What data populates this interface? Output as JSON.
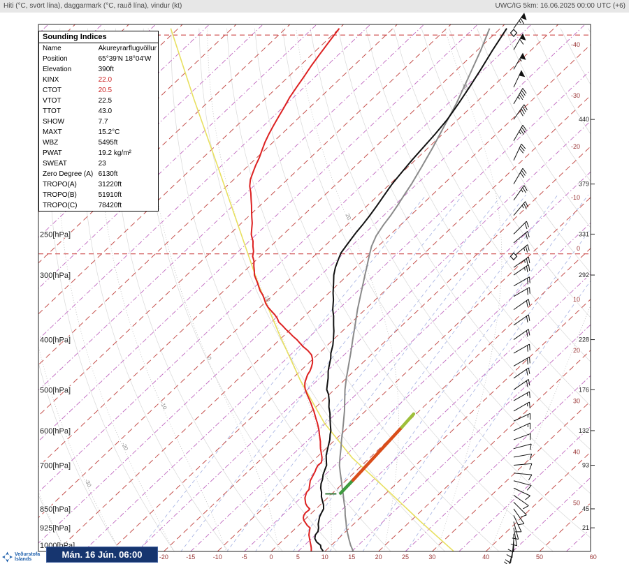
{
  "header": {
    "left": "Hiti (°C, svört lína), daggarmark (°C, rauð lína), vindur (kt)",
    "right": "UWC/IG 5km: 16.06.2025 00:00 UTC (+6)"
  },
  "indices_panel": {
    "title": "Sounding Indices",
    "rows": [
      {
        "label": "Name",
        "value": "Akureyrarflugvöllur",
        "value_color": "#000000"
      },
      {
        "label": "Position",
        "value": "65°39'N 18°04'W",
        "value_color": "#000000"
      },
      {
        "label": "Elevation",
        "value": "390ft",
        "value_color": "#000000"
      },
      {
        "label": "KINX",
        "value": "22.0",
        "value_color": "#cc2222"
      },
      {
        "label": "CTOT",
        "value": "20.5",
        "value_color": "#cc2222"
      },
      {
        "label": "VTOT",
        "value": "22.5",
        "value_color": "#000000"
      },
      {
        "label": "TTOT",
        "value": "43.0",
        "value_color": "#000000"
      },
      {
        "label": "SHOW",
        "value": "7.7",
        "value_color": "#000000"
      },
      {
        "label": "MAXT",
        "value": "15.2°C",
        "value_color": "#000000"
      },
      {
        "label": "WBZ",
        "value": "5495ft",
        "value_color": "#000000"
      },
      {
        "label": "PWAT",
        "value": "19.2 kg/m²",
        "value_color": "#000000"
      },
      {
        "label": "SWEAT",
        "value": "23",
        "value_color": "#000000"
      },
      {
        "label": "Zero Degree (A)",
        "value": "6130ft",
        "value_color": "#000000"
      },
      {
        "label": "TROPO(A)",
        "value": "31220ft",
        "value_color": "#000000"
      },
      {
        "label": "TROPO(B)",
        "value": "51910ft",
        "value_color": "#000000"
      },
      {
        "label": "TROPO(C)",
        "value": "78420ft",
        "value_color": "#000000"
      }
    ]
  },
  "footer": {
    "logo_text_top": "Veðurstofa",
    "logo_text_bottom": "Íslands",
    "datetime": "Mán. 16 Jún. 06:00"
  },
  "chart_data": {
    "type": "skewt_logp_sounding",
    "station": "Akureyrarflugvöllur",
    "pressure_labels": [
      {
        "p": 250,
        "text": "250[hPa]"
      },
      {
        "p": 300,
        "text": "300[hPa]"
      },
      {
        "p": 400,
        "text": "400[hPa]"
      },
      {
        "p": 500,
        "text": "500[hPa]"
      },
      {
        "p": 600,
        "text": "600[hPa]"
      },
      {
        "p": 700,
        "text": "700[hPa]"
      },
      {
        "p": 850,
        "text": "850[hPa]"
      },
      {
        "p": 925,
        "text": "925[hPa]"
      },
      {
        "p": 1000,
        "text": "1000[hPa]"
      }
    ],
    "bottom_temp_labels": [
      -20,
      -15,
      -10,
      -5,
      0,
      5,
      10,
      15,
      20,
      25,
      30,
      40,
      50,
      60
    ],
    "right_temp_labels": [
      -40,
      -30,
      -20,
      -10,
      0,
      10,
      20,
      30,
      40,
      50
    ],
    "right_height_labels": [
      {
        "p": 150,
        "text": "440"
      },
      {
        "p": 200,
        "text": "379"
      },
      {
        "p": 250,
        "text": "331"
      },
      {
        "p": 300,
        "text": "292"
      },
      {
        "p": 400,
        "text": "228"
      },
      {
        "p": 500,
        "text": "176"
      },
      {
        "p": 600,
        "text": "132"
      },
      {
        "p": 700,
        "text": "93"
      },
      {
        "p": 850,
        "text": "45"
      },
      {
        "p": 925,
        "text": "21"
      }
    ],
    "isotherm_step_minor": 5,
    "isotherm_step_major": 10,
    "mixing_ratio_lines_gkg": [
      0.5,
      1,
      2,
      3,
      5,
      8,
      12,
      20
    ],
    "dry_adiabats_c": {
      "min": -40,
      "max": 170,
      "step": 10
    },
    "moist_adiabats_c": {
      "min": -60,
      "max": 40,
      "step": 10
    },
    "moist_adiabat_labels": [
      -30,
      -20,
      -10,
      0,
      10,
      20,
      30
    ],
    "tropopause_lines_p": [
      273,
      103
    ],
    "tropopause_markers_p": [
      276,
      102
    ],
    "temperature_curve": [
      [
        1026,
        9.6
      ],
      [
        1012,
        8.6
      ],
      [
        1000,
        8.0
      ],
      [
        985,
        6.6
      ],
      [
        970,
        5.6
      ],
      [
        955,
        5.0
      ],
      [
        940,
        4.8
      ],
      [
        925,
        4.2
      ],
      [
        910,
        3.4
      ],
      [
        895,
        2.8
      ],
      [
        880,
        2.2
      ],
      [
        865,
        1.8
      ],
      [
        850,
        1.4
      ],
      [
        835,
        0.6
      ],
      [
        820,
        -0.4
      ],
      [
        805,
        -1.4
      ],
      [
        790,
        -2.2
      ],
      [
        775,
        -3.2
      ],
      [
        760,
        -4.0
      ],
      [
        745,
        -4.6
      ],
      [
        730,
        -5.4
      ],
      [
        715,
        -6.0
      ],
      [
        700,
        -6.6
      ],
      [
        685,
        -7.6
      ],
      [
        670,
        -8.6
      ],
      [
        655,
        -9.4
      ],
      [
        640,
        -10.2
      ],
      [
        625,
        -11.0
      ],
      [
        610,
        -12.0
      ],
      [
        600,
        -12.6
      ],
      [
        585,
        -13.8
      ],
      [
        570,
        -15.0
      ],
      [
        555,
        -16.2
      ],
      [
        540,
        -17.6
      ],
      [
        525,
        -18.8
      ],
      [
        510,
        -20.2
      ],
      [
        500,
        -21.4
      ],
      [
        490,
        -22.2
      ],
      [
        475,
        -23.4
      ],
      [
        460,
        -24.8
      ],
      [
        450,
        -25.6
      ],
      [
        435,
        -26.8
      ],
      [
        425,
        -27.8
      ],
      [
        410,
        -29.0
      ],
      [
        400,
        -30.0
      ],
      [
        385,
        -31.6
      ],
      [
        375,
        -32.8
      ],
      [
        360,
        -34.6
      ],
      [
        350,
        -36.0
      ],
      [
        335,
        -37.8
      ],
      [
        325,
        -39.2
      ],
      [
        310,
        -41.2
      ],
      [
        300,
        -42.6
      ],
      [
        290,
        -43.8
      ],
      [
        280,
        -44.8
      ],
      [
        272,
        -45.6
      ],
      [
        264,
        -46.0
      ],
      [
        256,
        -46.4
      ],
      [
        248,
        -46.8
      ],
      [
        240,
        -47.1
      ],
      [
        230,
        -47.6
      ],
      [
        220,
        -48.2
      ],
      [
        210,
        -48.9
      ],
      [
        200,
        -49.6
      ],
      [
        190,
        -50.1
      ],
      [
        180,
        -50.6
      ],
      [
        170,
        -51.0
      ],
      [
        160,
        -51.4
      ],
      [
        150,
        -52.0
      ],
      [
        140,
        -53.0
      ],
      [
        130,
        -54.2
      ],
      [
        120,
        -55.6
      ],
      [
        110,
        -57.2
      ],
      [
        100,
        -58.8
      ]
    ],
    "dewpoint_curve": [
      [
        1026,
        7.4
      ],
      [
        1012,
        6.8
      ],
      [
        1000,
        6.2
      ],
      [
        985,
        5.4
      ],
      [
        970,
        4.6
      ],
      [
        955,
        3.8
      ],
      [
        940,
        3.2
      ],
      [
        925,
        2.6
      ],
      [
        915,
        1.6
      ],
      [
        905,
        0.8
      ],
      [
        895,
        0.0
      ],
      [
        885,
        -0.6
      ],
      [
        875,
        -1.0
      ],
      [
        865,
        -1.2
      ],
      [
        855,
        -1.1
      ],
      [
        850,
        -1.2
      ],
      [
        840,
        -2.2
      ],
      [
        830,
        -3.0
      ],
      [
        820,
        -3.6
      ],
      [
        810,
        -4.2
      ],
      [
        800,
        -4.6
      ],
      [
        790,
        -5.0
      ],
      [
        780,
        -5.1
      ],
      [
        770,
        -5.6
      ],
      [
        760,
        -6.1
      ],
      [
        750,
        -6.6
      ],
      [
        740,
        -6.9
      ],
      [
        730,
        -7.2
      ],
      [
        720,
        -7.5
      ],
      [
        710,
        -7.9
      ],
      [
        700,
        -8.2
      ],
      [
        692,
        -8.1
      ],
      [
        684,
        -8.5
      ],
      [
        676,
        -9.0
      ],
      [
        668,
        -9.6
      ],
      [
        660,
        -10.2
      ],
      [
        650,
        -11.0
      ],
      [
        640,
        -11.7
      ],
      [
        630,
        -12.4
      ],
      [
        620,
        -13.2
      ],
      [
        610,
        -14.0
      ],
      [
        600,
        -14.8
      ],
      [
        590,
        -15.7
      ],
      [
        580,
        -16.6
      ],
      [
        570,
        -17.6
      ],
      [
        560,
        -18.6
      ],
      [
        550,
        -19.6
      ],
      [
        540,
        -20.7
      ],
      [
        530,
        -21.8
      ],
      [
        520,
        -23.0
      ],
      [
        510,
        -24.2
      ],
      [
        500,
        -25.4
      ],
      [
        492,
        -26.2
      ],
      [
        484,
        -26.9
      ],
      [
        476,
        -27.4
      ],
      [
        468,
        -27.9
      ],
      [
        460,
        -28.2
      ],
      [
        452,
        -28.7
      ],
      [
        444,
        -29.3
      ],
      [
        436,
        -30.1
      ],
      [
        428,
        -31.1
      ],
      [
        420,
        -32.6
      ],
      [
        412,
        -34.4
      ],
      [
        404,
        -36.0
      ],
      [
        400,
        -36.8
      ],
      [
        394,
        -38.2
      ],
      [
        388,
        -39.5
      ],
      [
        382,
        -40.9
      ],
      [
        376,
        -42.2
      ],
      [
        370,
        -43.6
      ],
      [
        364,
        -44.6
      ],
      [
        358,
        -45.8
      ],
      [
        352,
        -47.2
      ],
      [
        346,
        -48.6
      ],
      [
        340,
        -49.8
      ],
      [
        334,
        -50.8
      ],
      [
        328,
        -51.9
      ],
      [
        322,
        -53.2
      ],
      [
        316,
        -54.3
      ],
      [
        310,
        -55.4
      ],
      [
        304,
        -56.6
      ],
      [
        300,
        -57.4
      ],
      [
        294,
        -58.3
      ],
      [
        288,
        -59.3
      ],
      [
        282,
        -60.2
      ],
      [
        276,
        -61.4
      ],
      [
        270,
        -62.2
      ],
      [
        264,
        -63.3
      ],
      [
        258,
        -64.3
      ],
      [
        252,
        -65.6
      ],
      [
        250,
        -66.0
      ],
      [
        244,
        -67.0
      ],
      [
        238,
        -68.0
      ],
      [
        232,
        -69.2
      ],
      [
        226,
        -70.4
      ],
      [
        220,
        -71.6
      ],
      [
        214,
        -72.9
      ],
      [
        208,
        -74.2
      ],
      [
        202,
        -75.7
      ],
      [
        196,
        -76.9
      ],
      [
        190,
        -77.8
      ],
      [
        184,
        -78.7
      ],
      [
        178,
        -79.5
      ],
      [
        172,
        -80.5
      ],
      [
        166,
        -81.5
      ],
      [
        160,
        -82.4
      ],
      [
        154,
        -83.2
      ],
      [
        148,
        -84.0
      ],
      [
        142,
        -84.8
      ],
      [
        136,
        -85.7
      ],
      [
        130,
        -86.4
      ],
      [
        124,
        -87.1
      ],
      [
        118,
        -87.9
      ],
      [
        112,
        -88.6
      ],
      [
        106,
        -89.3
      ],
      [
        100,
        -90.0
      ]
    ],
    "gray_reference_curve": [
      [
        1026,
        15.2
      ],
      [
        1000,
        13.6
      ],
      [
        975,
        12.2
      ],
      [
        950,
        10.8
      ],
      [
        925,
        9.4
      ],
      [
        900,
        8.1
      ],
      [
        875,
        6.7
      ],
      [
        850,
        5.4
      ],
      [
        825,
        3.9
      ],
      [
        800,
        2.4
      ],
      [
        775,
        0.8
      ],
      [
        750,
        -0.8
      ],
      [
        725,
        -2.5
      ],
      [
        700,
        -4.2
      ],
      [
        675,
        -5.7
      ],
      [
        650,
        -7.2
      ],
      [
        625,
        -8.8
      ],
      [
        600,
        -10.4
      ],
      [
        575,
        -12.1
      ],
      [
        550,
        -13.9
      ],
      [
        525,
        -15.9
      ],
      [
        500,
        -18.0
      ],
      [
        475,
        -20.0
      ],
      [
        450,
        -22.0
      ],
      [
        425,
        -24.1
      ],
      [
        400,
        -26.4
      ],
      [
        375,
        -28.8
      ],
      [
        350,
        -31.4
      ],
      [
        325,
        -34.0
      ],
      [
        300,
        -36.8
      ],
      [
        288,
        -38.2
      ],
      [
        276,
        -39.7
      ],
      [
        264,
        -41.2
      ],
      [
        252,
        -42.4
      ],
      [
        240,
        -43.2
      ],
      [
        230,
        -43.7
      ],
      [
        220,
        -44.4
      ],
      [
        210,
        -45.2
      ],
      [
        200,
        -46.0
      ],
      [
        185,
        -47.5
      ],
      [
        170,
        -49.2
      ],
      [
        155,
        -51.2
      ],
      [
        140,
        -53.4
      ],
      [
        125,
        -56.2
      ],
      [
        110,
        -59.4
      ],
      [
        100,
        -62.0
      ]
    ],
    "yellow_reference_curve": [
      [
        1026,
        33.9
      ],
      [
        898,
        21.8
      ],
      [
        775,
        8.8
      ],
      [
        677,
        -3.3
      ],
      [
        580,
        -15.3
      ],
      [
        480,
        -28.1
      ],
      [
        392,
        -40.9
      ],
      [
        316,
        -54.2
      ],
      [
        247,
        -68.6
      ],
      [
        187,
        -84.9
      ],
      [
        137,
        -103.2
      ],
      [
        100,
        -121.4
      ]
    ],
    "parcel_segments": [
      {
        "color": "#3f9b3f",
        "pts": [
          [
            793,
            1.5
          ],
          [
            748,
            1.25
          ]
        ]
      },
      {
        "color": "#d94d1a",
        "pts": [
          [
            748,
            1.25
          ],
          [
            591,
            -0.05
          ]
        ]
      },
      {
        "color": "#9ebf3a",
        "pts": [
          [
            591,
            -0.05
          ],
          [
            557,
            -0.44
          ]
        ]
      }
    ],
    "level_tick": {
      "p": 795,
      "t": -0.2
    },
    "wind_barbs": [
      [
        100,
        35,
        65
      ],
      [
        110,
        30,
        60
      ],
      [
        120,
        30,
        55
      ],
      [
        130,
        25,
        50
      ],
      [
        140,
        30,
        45
      ],
      [
        150,
        35,
        40
      ],
      [
        165,
        30,
        35
      ],
      [
        180,
        25,
        30
      ],
      [
        200,
        30,
        30
      ],
      [
        215,
        35,
        25
      ],
      [
        230,
        40,
        25
      ],
      [
        250,
        45,
        20
      ],
      [
        260,
        50,
        20
      ],
      [
        276,
        50,
        25
      ],
      [
        290,
        55,
        25
      ],
      [
        300,
        55,
        25
      ],
      [
        315,
        60,
        22
      ],
      [
        330,
        60,
        20
      ],
      [
        350,
        55,
        20
      ],
      [
        375,
        55,
        20
      ],
      [
        400,
        55,
        22
      ],
      [
        425,
        60,
        20
      ],
      [
        450,
        60,
        18
      ],
      [
        475,
        55,
        18
      ],
      [
        500,
        55,
        18
      ],
      [
        525,
        60,
        15
      ],
      [
        550,
        60,
        15
      ],
      [
        575,
        65,
        15
      ],
      [
        600,
        65,
        15
      ],
      [
        625,
        70,
        12
      ],
      [
        650,
        75,
        12
      ],
      [
        675,
        80,
        10
      ],
      [
        700,
        85,
        10
      ],
      [
        725,
        95,
        10
      ],
      [
        750,
        105,
        12
      ],
      [
        775,
        115,
        10
      ],
      [
        800,
        125,
        12
      ],
      [
        825,
        135,
        10
      ],
      [
        850,
        145,
        12
      ],
      [
        875,
        155,
        10
      ],
      [
        900,
        165,
        12
      ],
      [
        925,
        170,
        10
      ],
      [
        950,
        180,
        12
      ],
      [
        975,
        185,
        10
      ],
      [
        1000,
        190,
        8
      ],
      [
        1013,
        195,
        8
      ]
    ],
    "colors": {
      "temperature": "#111111",
      "dewpoint": "#dd2222",
      "gray_curve": "#8a8a8a",
      "yellow_curve": "#e8e060",
      "isotherm_major": "#c5524e",
      "isotherm_minor": "#c069c0",
      "dry_adiabat": "#d4d4d4",
      "moist_adiabat": "#bdbdbd",
      "mixing_ratio": "#93a2dd",
      "axis_label": "#993333",
      "height_label": "#222222",
      "tropopause_line": "#cc4444",
      "barb": "#111111"
    }
  }
}
